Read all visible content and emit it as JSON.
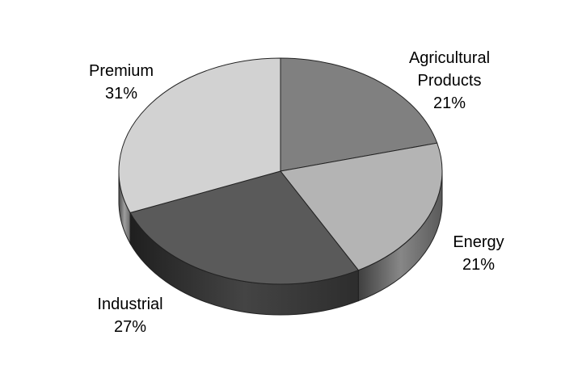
{
  "chart_data": {
    "type": "pie",
    "categories": [
      "Agricultural Products",
      "Energy",
      "Industrial",
      "Premium"
    ],
    "values": [
      21,
      21,
      27,
      31
    ],
    "value_labels": [
      "21%",
      "21%",
      "27%",
      "31%"
    ],
    "colors": [
      "#808080",
      "#b4b4b4",
      "#5a5a5a",
      "#d2d2d2"
    ]
  }
}
